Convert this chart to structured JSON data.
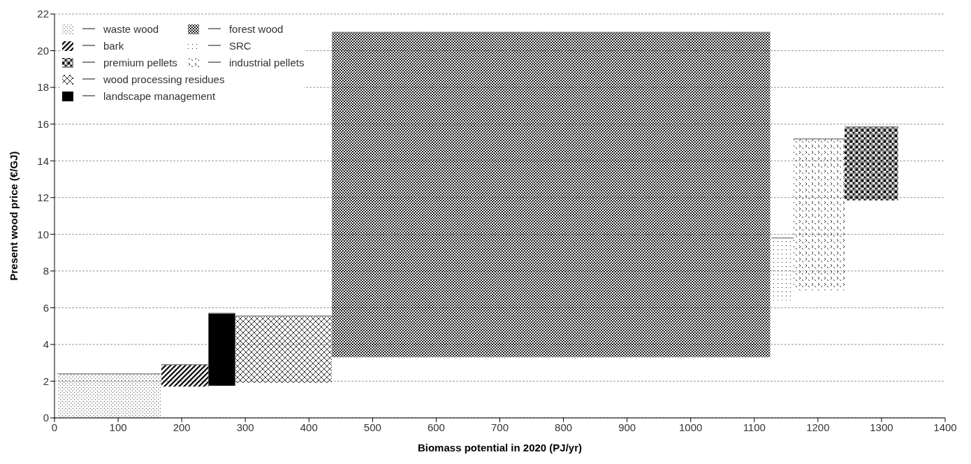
{
  "chart_data": {
    "type": "line",
    "xlabel": "Biomass potential in 2020  (PJ/yr)",
    "ylabel": "Present  wood price (€/GJ)",
    "xlim": [
      0,
      1400
    ],
    "xticks": [
      0,
      100,
      200,
      300,
      400,
      500,
      600,
      700,
      800,
      900,
      1000,
      1100,
      1200,
      1300,
      1400
    ],
    "ylim": [
      0,
      22
    ],
    "yticks": [
      0,
      2,
      4,
      6,
      8,
      10,
      12,
      14,
      16,
      18,
      20,
      22
    ],
    "grid": "y",
    "legend": "top left",
    "series": [
      {
        "name": "waste wood",
        "color": "#888888",
        "x": [
          5,
          167
        ],
        "values": [
          2.4,
          2.4
        ],
        "lower": [
          0,
          0
        ],
        "upper": [
          2.4,
          2.4
        ]
      },
      {
        "name": "forest wood",
        "color": "#888888",
        "x": [
          436,
          1125
        ],
        "values": [
          21,
          21
        ],
        "lower": [
          3.3,
          3.3
        ],
        "upper": [
          21,
          21
        ]
      },
      {
        "name": "bark",
        "color": "#888888",
        "x": [
          168,
          242
        ],
        "values": [
          2.9,
          2.9
        ],
        "lower": [
          1.7,
          1.7
        ],
        "upper": [
          2.9,
          2.9
        ]
      },
      {
        "name": "SRC",
        "color": "#888888",
        "x": [
          1127,
          1162
        ],
        "values": [
          9.8,
          9.8
        ],
        "lower": [
          6.4,
          6.4
        ],
        "upper": [
          9.8,
          9.8
        ]
      },
      {
        "name": "premium  pellets",
        "color": "#888888",
        "x": [
          1242,
          1326
        ],
        "values": [
          15.85,
          15.85
        ],
        "lower": [
          11.85,
          11.85
        ],
        "upper": [
          15.85,
          15.85
        ]
      },
      {
        "name": "industrial pellets",
        "color": "#888888",
        "x": [
          1162,
          1242
        ],
        "values": [
          15.2,
          15.2
        ],
        "lower": [
          6.95,
          6.95
        ],
        "upper": [
          15.2,
          15.2
        ]
      },
      {
        "name": "wood processing residues",
        "color": "#888888",
        "x": [
          284,
          436
        ],
        "values": [
          5.55,
          5.55
        ],
        "lower": [
          1.9,
          1.9
        ],
        "upper": [
          5.55,
          5.55
        ]
      },
      {
        "name": "landscape management",
        "color": "#888888",
        "x": [
          242,
          284
        ],
        "values": [
          5.7,
          5.7
        ],
        "lower": [
          1.75,
          1.75
        ],
        "upper": [
          5.7,
          5.7
        ]
      }
    ]
  }
}
